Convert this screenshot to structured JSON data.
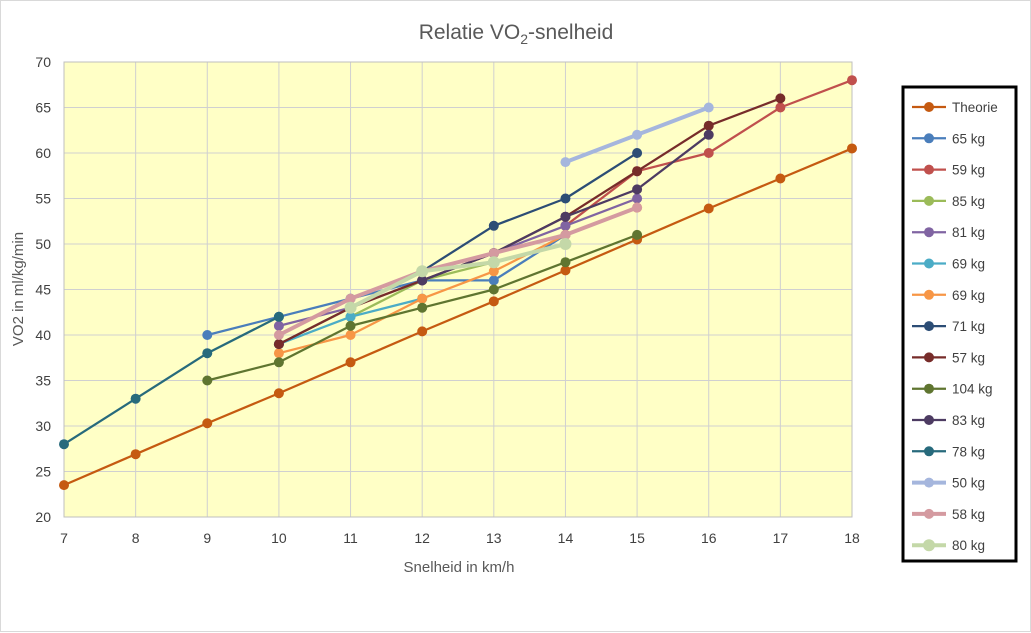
{
  "chart_data": {
    "type": "line",
    "title": "Relatie VO2-snelheid",
    "title_parts": {
      "prefix": "Relatie VO",
      "subscript": "2",
      "suffix": "-snelheid"
    },
    "xlabel": "Snelheid in km/h",
    "ylabel": "VO2 in ml/kg/min",
    "xlim": [
      7,
      18
    ],
    "ylim": [
      20,
      70
    ],
    "x_ticks": [
      7,
      8,
      9,
      10,
      11,
      12,
      13,
      14,
      15,
      16,
      17,
      18
    ],
    "y_ticks": [
      20,
      25,
      30,
      35,
      40,
      45,
      50,
      55,
      60,
      65,
      70
    ],
    "grid": true,
    "plot_background": "#ffffc6",
    "legend_position": "right",
    "series": [
      {
        "name": "Theorie",
        "color": "#c55a11",
        "x": [
          7,
          8,
          9,
          10,
          11,
          12,
          13,
          14,
          15,
          16,
          17,
          18
        ],
        "y": [
          23.5,
          26.9,
          30.3,
          33.6,
          37.0,
          40.4,
          43.7,
          47.1,
          50.5,
          53.9,
          57.2,
          60.5
        ]
      },
      {
        "name": "65 kg",
        "color": "#4a7ebb",
        "x": [
          9,
          10,
          11,
          12,
          13,
          14
        ],
        "y": [
          40,
          42,
          44,
          46,
          46,
          51
        ]
      },
      {
        "name": "59 kg",
        "color": "#c0504d",
        "x": [
          14,
          15,
          16,
          17,
          18
        ],
        "y": [
          52,
          58,
          60,
          65,
          68
        ]
      },
      {
        "name": "85 kg",
        "color": "#9bbb59",
        "x": [
          11,
          12,
          13,
          14
        ],
        "y": [
          42,
          46,
          48,
          50
        ]
      },
      {
        "name": "81 kg",
        "color": "#8064a2",
        "x": [
          10,
          11,
          12,
          13,
          14,
          15
        ],
        "y": [
          41,
          43,
          46,
          49,
          52,
          55
        ]
      },
      {
        "name": "69 kg",
        "color": "#4bacc6",
        "x": [
          10,
          11,
          12
        ],
        "y": [
          39,
          42,
          44
        ]
      },
      {
        "name": "69 kg",
        "color": "#f79646",
        "x": [
          10,
          11,
          12,
          13,
          14,
          15
        ],
        "y": [
          38,
          40,
          44,
          47,
          51,
          54
        ]
      },
      {
        "name": "71 kg",
        "color": "#2c4d75",
        "x": [
          10,
          11,
          12,
          13,
          14,
          15
        ],
        "y": [
          39,
          43,
          47,
          52,
          55,
          60
        ]
      },
      {
        "name": "57 kg",
        "color": "#772c2a",
        "x": [
          10,
          11,
          12,
          13,
          14,
          15,
          16,
          17
        ],
        "y": [
          39,
          43,
          46,
          49,
          53,
          58,
          63,
          66
        ]
      },
      {
        "name": "104 kg",
        "color": "#5f7530",
        "x": [
          9,
          10,
          11,
          12,
          13,
          14,
          15
        ],
        "y": [
          35,
          37,
          41,
          43,
          45,
          48,
          51
        ]
      },
      {
        "name": "83 kg",
        "color": "#4d3b62",
        "x": [
          12,
          13,
          14,
          15,
          16
        ],
        "y": [
          46,
          49,
          53,
          56,
          62
        ]
      },
      {
        "name": "78 kg",
        "color": "#276a7c",
        "x": [
          7,
          8,
          9,
          10
        ],
        "y": [
          28,
          33,
          38,
          42
        ]
      },
      {
        "name": "50 kg",
        "color": "#a5b6dd",
        "x": [
          14,
          15,
          16
        ],
        "y": [
          59,
          62,
          65
        ],
        "thick": true
      },
      {
        "name": "58 kg",
        "color": "#d49aa0",
        "x": [
          10,
          11,
          12,
          13,
          14,
          15
        ],
        "y": [
          40,
          44,
          47,
          49,
          51,
          54
        ],
        "thick": true
      },
      {
        "name": "80 kg",
        "color": "#c4d8a8",
        "x": [
          11,
          12,
          13,
          14
        ],
        "y": [
          43,
          47,
          48,
          50
        ],
        "thick": true,
        "big_marker": true
      }
    ]
  }
}
